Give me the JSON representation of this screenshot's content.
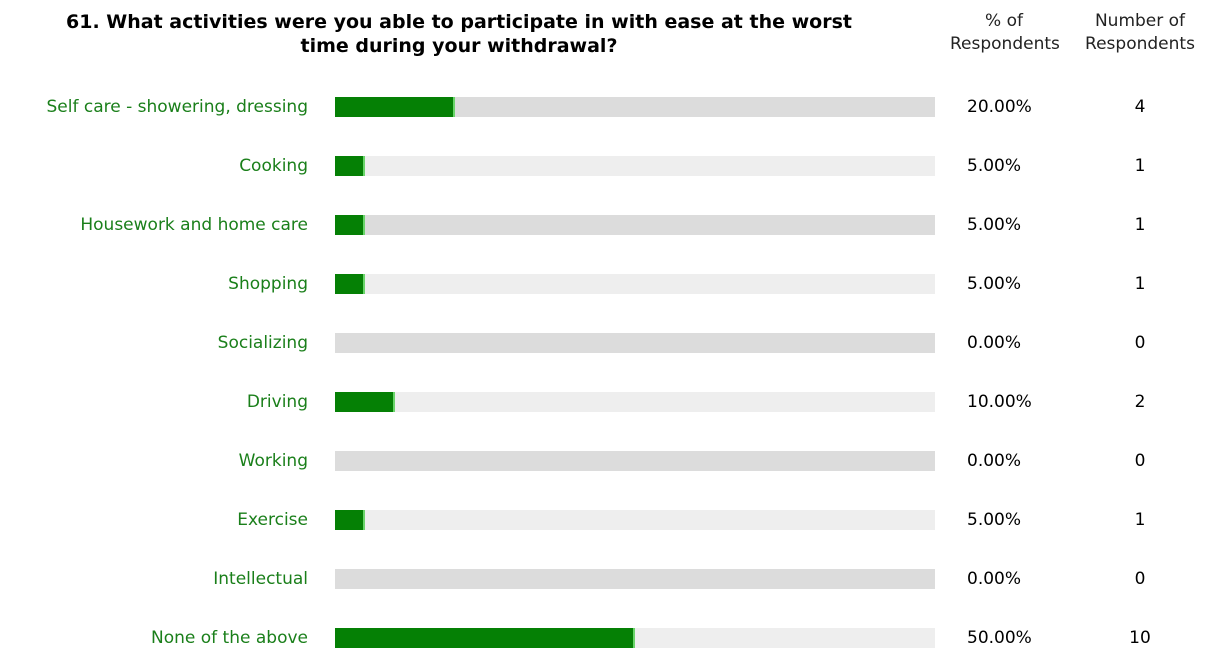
{
  "question": {
    "title_line1": "61. What activities were you able to participate in with ease at the worst",
    "title_line2": "time during your withdrawal?",
    "col_pct_line1": "% of",
    "col_pct_line2": "Respondents",
    "col_cnt_line1": "Number of",
    "col_cnt_line2": "Respondents"
  },
  "chart_data": {
    "type": "bar",
    "orientation": "horizontal",
    "xlim": [
      0,
      100
    ],
    "categories": [
      "Self care - showering, dressing",
      "Cooking",
      "Housework and home care",
      "Shopping",
      "Socializing",
      "Driving",
      "Working",
      "Exercise",
      "Intellectual",
      "None of the above"
    ],
    "values": [
      20,
      5,
      5,
      5,
      0,
      10,
      0,
      5,
      0,
      50
    ],
    "percent_labels": [
      "20.00%",
      "5.00%",
      "5.00%",
      "5.00%",
      "0.00%",
      "10.00%",
      "0.00%",
      "5.00%",
      "0.00%",
      "50.00%"
    ],
    "counts": [
      "4",
      "1",
      "1",
      "1",
      "0",
      "2",
      "0",
      "1",
      "0",
      "10"
    ],
    "colors": {
      "bar": "#058005",
      "label": "#1a7f1a",
      "track_dark": "#dcdcdc",
      "track_light": "#eeeeee"
    }
  }
}
